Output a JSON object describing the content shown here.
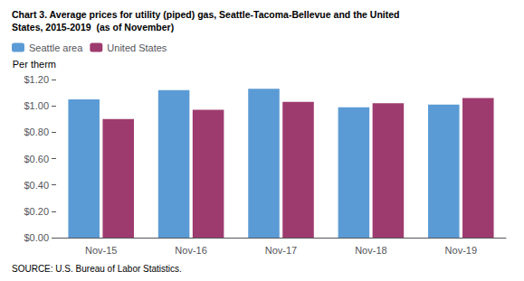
{
  "chart_data": {
    "type": "bar",
    "title": "Chart 3. Average prices for utility (piped) gas, Seattle-Tacoma-Bellevue and the United\nStates, 2015-2019  (as of November)",
    "y_label": "Per therm",
    "annotations": [
      "SOURCE: U.S. Bureau of Labor Statistics."
    ],
    "categories": [
      "Nov-15",
      "Nov-16",
      "Nov-17",
      "Nov-18",
      "Nov-19"
    ],
    "series": [
      {
        "name": "Seattle area",
        "color": "#5B9BD5",
        "values": [
          1.05,
          1.12,
          1.13,
          0.99,
          1.01
        ]
      },
      {
        "name": "United States",
        "color": "#9E3B6E",
        "values": [
          0.9,
          0.97,
          1.03,
          1.02,
          1.06
        ]
      }
    ],
    "ylim": [
      0,
      1.2
    ],
    "yticks": [
      {
        "value": 0.0,
        "label": "$0.00"
      },
      {
        "value": 0.2,
        "label": "$0.20"
      },
      {
        "value": 0.4,
        "label": "$0.40"
      },
      {
        "value": 0.6,
        "label": "$0.60"
      },
      {
        "value": 0.8,
        "label": "$0.80"
      },
      {
        "value": 1.0,
        "label": "$1.00"
      },
      {
        "value": 1.2,
        "label": "$1.20"
      }
    ],
    "grid": false,
    "legend": "upper left"
  }
}
